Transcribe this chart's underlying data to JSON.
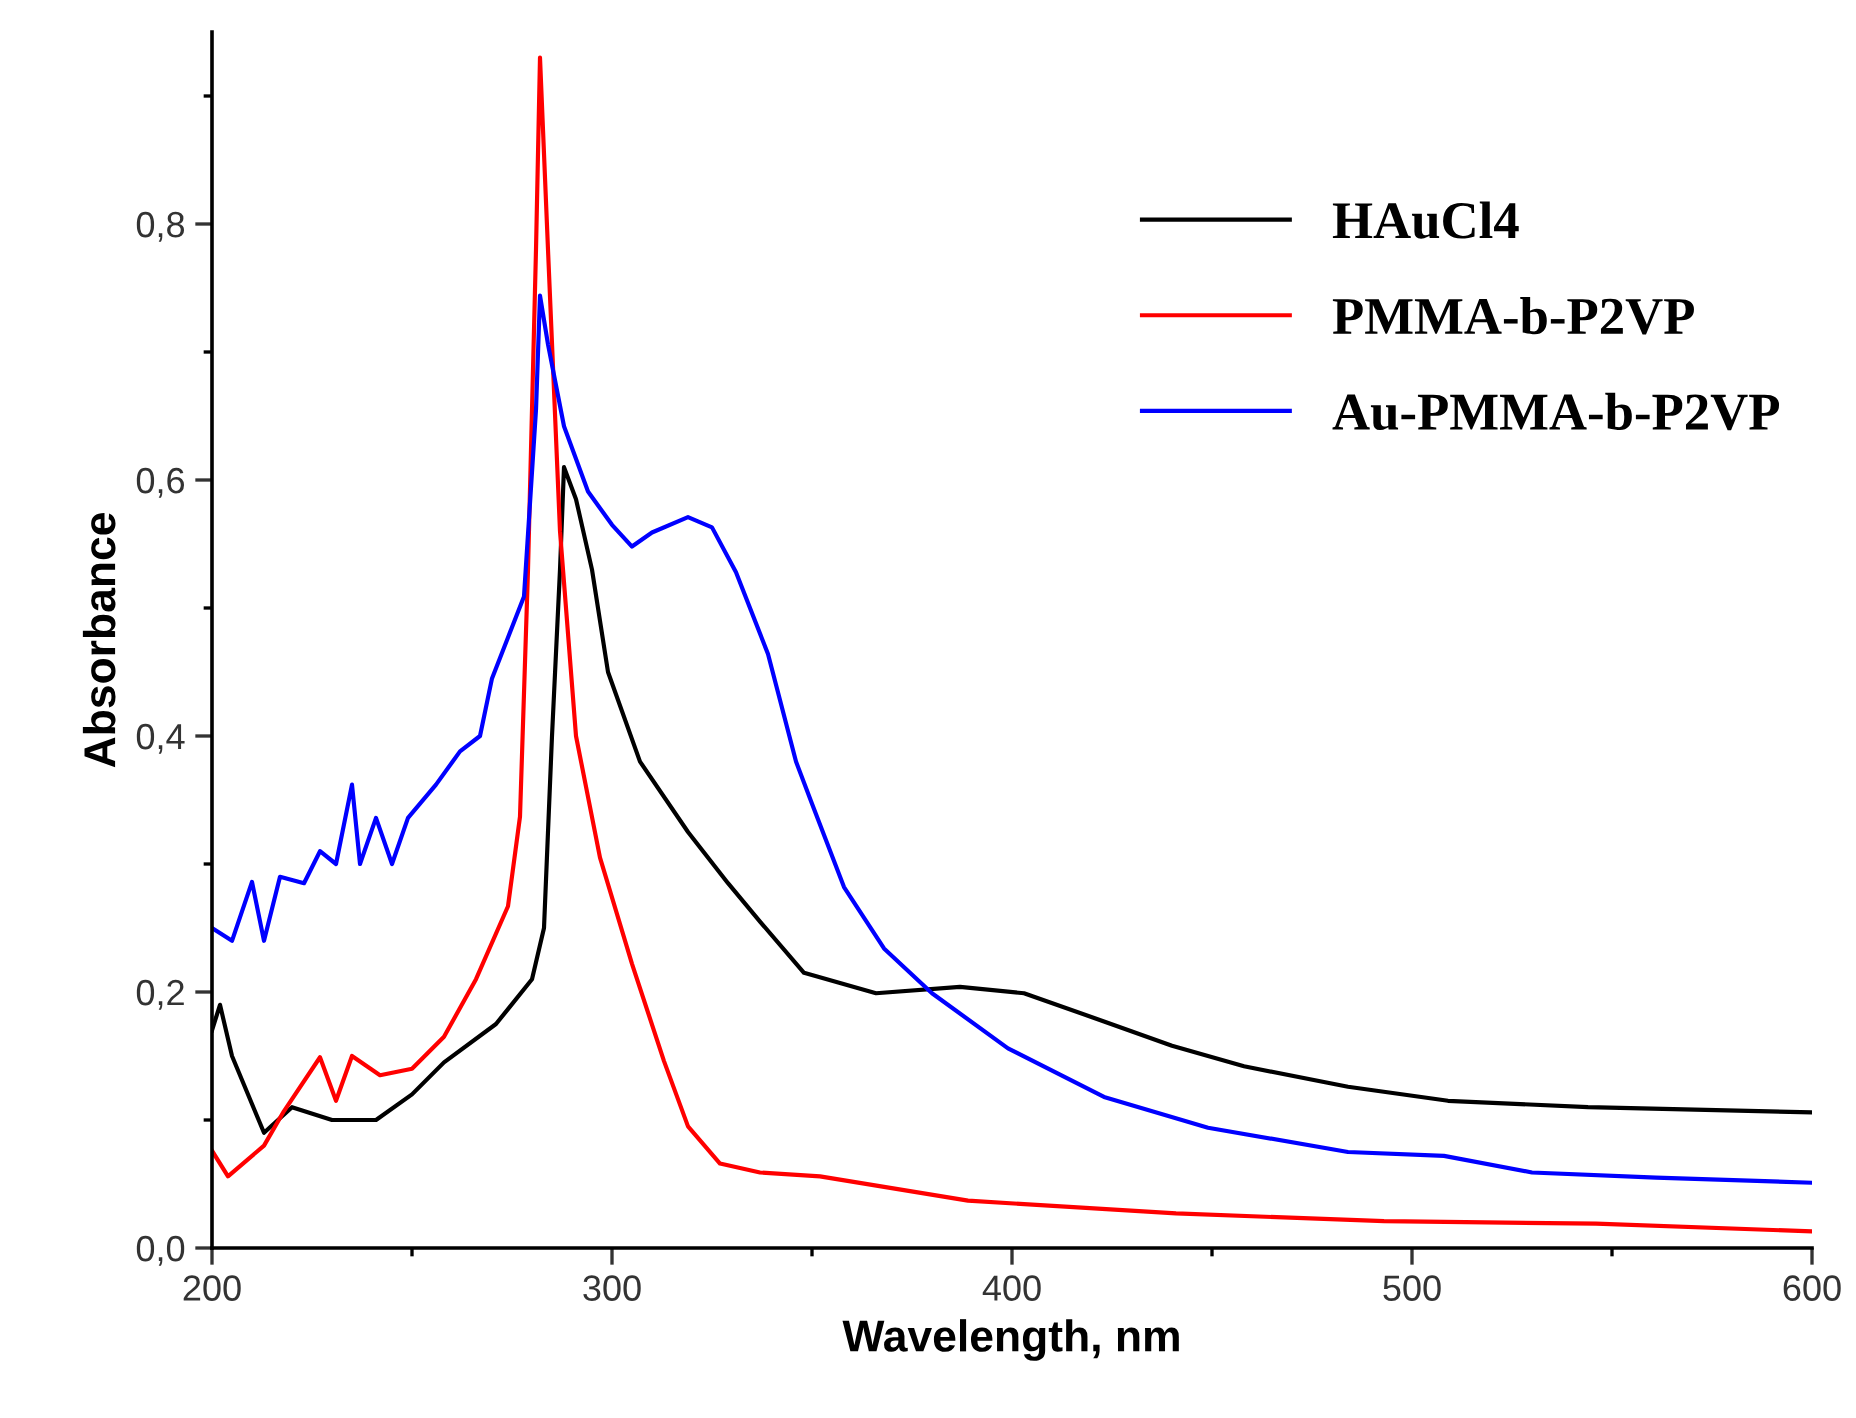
{
  "chart_data": {
    "type": "line",
    "xlabel": "Wavelength, nm",
    "ylabel": "Absorbance",
    "xlim": [
      200,
      600
    ],
    "ylim": [
      0,
      0.95
    ],
    "xticks": [
      200,
      {
        "value": 250,
        "label": null
      },
      300,
      {
        "value": 350,
        "label": null
      },
      400,
      {
        "value": 450,
        "label": null
      },
      500,
      {
        "value": 550,
        "label": null
      },
      600
    ],
    "yticks": [
      {
        "value": 0,
        "label": "0,0"
      },
      {
        "value": 0.1,
        "label": null
      },
      {
        "value": 0.2,
        "label": "0,2"
      },
      {
        "value": 0.3,
        "label": null
      },
      {
        "value": 0.4,
        "label": "0,4"
      },
      {
        "value": 0.5,
        "label": null
      },
      {
        "value": 0.6,
        "label": "0,6"
      },
      {
        "value": 0.7,
        "label": null
      },
      {
        "value": 0.8,
        "label": "0,8"
      },
      {
        "value": 0.9,
        "label": null
      }
    ],
    "grid": false,
    "legend": "top right",
    "marker": "none",
    "line_style": "solid",
    "series": [
      {
        "name": "HAuCl4",
        "color": "#000000",
        "x": [
          200,
          202,
          205,
          213,
          220,
          230,
          241,
          250,
          258,
          271,
          280,
          283,
          285,
          287,
          288,
          291,
          295,
          299,
          307,
          319,
          329,
          337,
          348,
          366,
          387,
          403,
          423,
          440,
          458,
          484,
          509,
          544,
          600
        ],
        "values": [
          0.17,
          0.19,
          0.15,
          0.09,
          0.11,
          0.1,
          0.1,
          0.12,
          0.145,
          0.175,
          0.21,
          0.25,
          0.4,
          0.53,
          0.61,
          0.585,
          0.53,
          0.45,
          0.38,
          0.325,
          0.285,
          0.255,
          0.215,
          0.199,
          0.204,
          0.199,
          0.177,
          0.158,
          0.142,
          0.126,
          0.115,
          0.11,
          0.106
        ]
      },
      {
        "name": "PMMA-b-P2VP",
        "color": "#ff0000",
        "x": [
          200,
          204,
          213,
          218,
          227,
          231,
          235,
          242,
          250,
          258,
          266,
          274,
          277,
          279,
          281,
          282,
          284,
          287,
          291,
          297,
          305,
          313,
          319,
          327,
          337,
          352,
          389,
          441,
          493,
          546,
          600
        ],
        "values": [
          0.076,
          0.056,
          0.08,
          0.107,
          0.149,
          0.115,
          0.15,
          0.135,
          0.14,
          0.165,
          0.21,
          0.267,
          0.337,
          0.53,
          0.78,
          0.93,
          0.78,
          0.56,
          0.4,
          0.305,
          0.222,
          0.146,
          0.095,
          0.066,
          0.059,
          0.056,
          0.037,
          0.027,
          0.021,
          0.019,
          0.013
        ]
      },
      {
        "name": "Au-PMMA-b-P2VP",
        "color": "#0000ff",
        "x": [
          200,
          205,
          210,
          213,
          217,
          223,
          227,
          231,
          235,
          237,
          241,
          245,
          249,
          256,
          262,
          267,
          270,
          274,
          278,
          281,
          282,
          284,
          288,
          294,
          300,
          305,
          310,
          319,
          325,
          331,
          339,
          346,
          350,
          358,
          368,
          380,
          399,
          423,
          449,
          484,
          508,
          530,
          561,
          600
        ],
        "values": [
          0.25,
          0.24,
          0.286,
          0.24,
          0.29,
          0.285,
          0.31,
          0.3,
          0.362,
          0.3,
          0.336,
          0.3,
          0.336,
          0.362,
          0.388,
          0.4,
          0.445,
          0.477,
          0.509,
          0.655,
          0.744,
          0.706,
          0.642,
          0.591,
          0.565,
          0.548,
          0.559,
          0.571,
          0.563,
          0.528,
          0.464,
          0.38,
          0.347,
          0.282,
          0.234,
          0.199,
          0.156,
          0.118,
          0.094,
          0.075,
          0.072,
          0.059,
          0.055,
          0.051
        ]
      }
    ]
  }
}
